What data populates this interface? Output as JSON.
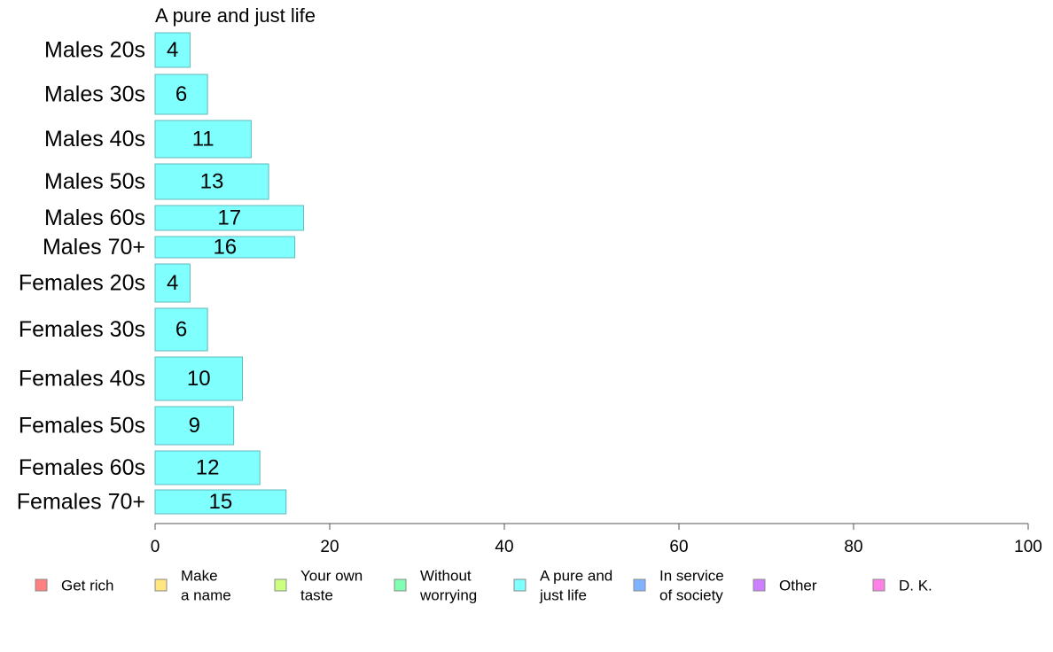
{
  "chart_data": {
    "type": "bar",
    "orientation": "horizontal",
    "title": "A pure and just life",
    "xlim": [
      0,
      100
    ],
    "xticks": [
      0,
      20,
      40,
      60,
      80,
      100
    ],
    "categories": [
      "Males 20s",
      "Males 30s",
      "Males 40s",
      "Males 50s",
      "Males 60s",
      "Males 70+",
      "Females 20s",
      "Females 30s",
      "Females 40s",
      "Females 50s",
      "Females 60s",
      "Females 70+"
    ],
    "values": [
      4,
      6,
      11,
      13,
      17,
      16,
      4,
      6,
      10,
      9,
      12,
      15
    ],
    "bar_color": "#80FFFF",
    "grid": false,
    "legend_position": "bottom",
    "legend": [
      {
        "label": [
          "Get rich"
        ],
        "color": "#FF8080"
      },
      {
        "label": [
          "Make",
          "a name"
        ],
        "color": "#FFE680"
      },
      {
        "label": [
          "Your own",
          "taste"
        ],
        "color": "#CCFF80"
      },
      {
        "label": [
          "Without",
          "worrying"
        ],
        "color": "#80FFB3"
      },
      {
        "label": [
          "A pure and",
          "just life"
        ],
        "color": "#80FFFF"
      },
      {
        "label": [
          "In service",
          "of society"
        ],
        "color": "#80B3FF"
      },
      {
        "label": [
          "Other"
        ],
        "color": "#CC80FF"
      },
      {
        "label": [
          "D. K."
        ],
        "color": "#FF80E6"
      }
    ]
  }
}
